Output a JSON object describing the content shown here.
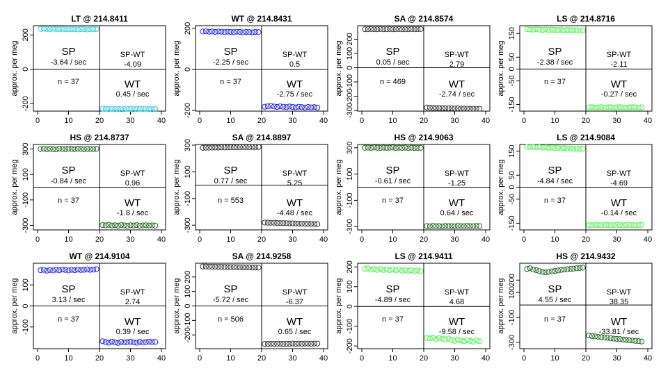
{
  "figure": {
    "ylabel": "approx. per meg",
    "xticks": [
      0,
      10,
      20,
      30,
      40
    ],
    "xlim": [
      0,
      40
    ]
  },
  "chart_data": [
    {
      "type": "scatter",
      "title": "LT @ 214.8411",
      "color": "#33ccdd",
      "ylim": [
        -240,
        250
      ],
      "yticks": [
        -200,
        0,
        200
      ],
      "sp_rate": "-3.64 / sec",
      "spwt": "-4.09",
      "wt_rate": "0.45 / sec",
      "n": "n = 37",
      "sp_values": [
        235,
        236,
        235,
        234,
        236,
        235,
        233,
        235,
        234,
        233,
        234,
        233,
        232,
        234,
        233,
        232,
        233,
        234,
        233
      ],
      "wt_values": [
        -230,
        -231,
        -232,
        -231,
        -232,
        -232,
        -233,
        -232,
        -231,
        -232,
        -233,
        -232,
        -231,
        -232,
        -231,
        -232,
        -233,
        -232
      ]
    },
    {
      "type": "scatter",
      "title": "WT @ 214.8431",
      "color": "#2222dd",
      "ylim": [
        -200,
        210
      ],
      "yticks": [
        -200,
        0,
        200
      ],
      "sp_rate": "-2.25 / sec",
      "spwt": "0.5",
      "wt_rate": "-2.75 / sec",
      "n": "n = 37",
      "sp_values": [
        185,
        186,
        184,
        185,
        183,
        185,
        184,
        182,
        184,
        183,
        182,
        184,
        183,
        181,
        183,
        182,
        181,
        183,
        182
      ],
      "wt_values": [
        -182,
        -180,
        -178,
        -181,
        -183,
        -180,
        -182,
        -184,
        -181,
        -183,
        -185,
        -182,
        -184,
        -186,
        -183,
        -185,
        -184,
        -186
      ]
    },
    {
      "type": "scatter",
      "title": "SA @ 214.8574",
      "color": "#333333",
      "ylim": [
        -300,
        290
      ],
      "yticks": [
        -300,
        -200,
        -100,
        0,
        100,
        200,
        300
      ],
      "sp_rate": "0.05 / sec",
      "spwt": "2.79",
      "wt_rate": "-2.74 / sec",
      "n": "n = 469",
      "sp_values": [
        270,
        270,
        271,
        270,
        270,
        271,
        270,
        270,
        271,
        270,
        270,
        271,
        270,
        270,
        270,
        271,
        270,
        270,
        271
      ],
      "wt_values": [
        -280,
        -281,
        -282,
        -283,
        -283,
        -284,
        -284,
        -285,
        -285,
        -286,
        -286,
        -287,
        -287,
        -287,
        -288,
        -288,
        -288,
        -288
      ]
    },
    {
      "type": "scatter",
      "title": "LS @ 214.8716",
      "color": "#55ee55",
      "ylim": [
        -175,
        180
      ],
      "yticks": [
        -150,
        -50,
        0,
        50,
        150
      ],
      "sp_rate": "-2.38 / sec",
      "spwt": "-2.11",
      "wt_rate": "-0.27 / sec",
      "n": "n = 37",
      "sp_values": [
        168,
        167,
        166,
        168,
        166,
        165,
        167,
        164,
        166,
        165,
        164,
        166,
        163,
        165,
        164,
        163,
        164,
        162,
        163
      ],
      "wt_values": [
        -162,
        -161,
        -163,
        -162,
        -161,
        -163,
        -162,
        -161,
        -163,
        -162,
        -161,
        -162,
        -163,
        -162,
        -161,
        -162,
        -163,
        -162
      ]
    },
    {
      "type": "scatter",
      "title": "HS @ 214.8737",
      "color": "#226622",
      "ylim": [
        -330,
        330
      ],
      "yticks": [
        -300,
        -100,
        100,
        300
      ],
      "sp_rate": "-0.84 / sec",
      "spwt": "0.96",
      "wt_rate": "-1.8 / sec",
      "n": "n = 37",
      "sp_values": [
        300,
        302,
        298,
        301,
        299,
        297,
        302,
        300,
        298,
        303,
        301,
        299,
        302,
        300,
        298,
        301,
        300,
        299,
        301
      ],
      "wt_values": [
        -298,
        -300,
        -296,
        -301,
        -299,
        -302,
        -298,
        -300,
        -303,
        -299,
        -301,
        -298,
        -302,
        -300,
        -299,
        -301,
        -300,
        -302
      ]
    },
    {
      "type": "scatter",
      "title": "SA @ 214.8897",
      "color": "#333333",
      "ylim": [
        -330,
        300
      ],
      "yticks": [
        -300,
        -100,
        100,
        300
      ],
      "sp_rate": "0.77 / sec",
      "spwt": "5.25",
      "wt_rate": "-4.48 / sec",
      "n": "n = 553",
      "sp_values": [
        280,
        281,
        281,
        282,
        282,
        282,
        283,
        283,
        283,
        284,
        284,
        284,
        285,
        285,
        285,
        285,
        286,
        286,
        286
      ],
      "wt_values": [
        -280,
        -281,
        -282,
        -282,
        -283,
        -284,
        -284,
        -285,
        -286,
        -286,
        -287,
        -288,
        -288,
        -289,
        -290,
        -290,
        -291,
        -292
      ]
    },
    {
      "type": "scatter",
      "title": "HS @ 214.9063",
      "color": "#226622",
      "ylim": [
        -320,
        320
      ],
      "yticks": [
        -300,
        -100,
        100,
        300
      ],
      "sp_rate": "-0.61 / sec",
      "spwt": "-1.25",
      "wt_rate": "0.64 / sec",
      "n": "n = 37",
      "sp_values": [
        300,
        301,
        299,
        302,
        300,
        298,
        301,
        299,
        300,
        302,
        298,
        300,
        299,
        301,
        297,
        300,
        299,
        298,
        300
      ],
      "wt_values": [
        -296,
        -298,
        -295,
        -297,
        -296,
        -298,
        -295,
        -297,
        -296,
        -298,
        -295,
        -296,
        -297,
        -295,
        -296,
        -297,
        -295,
        -296
      ]
    },
    {
      "type": "scatter",
      "title": "LS @ 214.9084",
      "color": "#55ee55",
      "ylim": [
        -175,
        175
      ],
      "yticks": [
        -150,
        -50,
        0,
        50,
        150
      ],
      "sp_rate": "-4.84 / sec",
      "spwt": "-4.69",
      "wt_rate": "-0.14 / sec",
      "n": "n = 37",
      "sp_values": [
        168,
        167,
        168,
        166,
        167,
        165,
        166,
        164,
        165,
        163,
        164,
        162,
        163,
        161,
        162,
        160,
        161,
        159,
        160
      ],
      "wt_values": [
        -158,
        -159,
        -157,
        -158,
        -159,
        -157,
        -158,
        -159,
        -158,
        -157,
        -158,
        -159,
        -158,
        -157,
        -158,
        -159,
        -158,
        -157
      ]
    },
    {
      "type": "scatter",
      "title": "WT @ 214.9104",
      "color": "#2222dd",
      "ylim": [
        -200,
        200
      ],
      "yticks": [
        -100,
        0,
        100
      ],
      "sp_rate": "3.13 / sec",
      "spwt": "2.74",
      "wt_rate": "0.39 / sec",
      "n": "n = 37",
      "sp_values": [
        170,
        172,
        168,
        171,
        169,
        172,
        170,
        173,
        171,
        169,
        172,
        170,
        173,
        171,
        172,
        174,
        172,
        173,
        175
      ],
      "wt_values": [
        -168,
        -172,
        -175,
        -170,
        -173,
        -176,
        -171,
        -174,
        -172,
        -170,
        -173,
        -175,
        -171,
        -174,
        -172,
        -170,
        -172,
        -171
      ]
    },
    {
      "type": "scatter",
      "title": "SA @ 214.9258",
      "color": "#333333",
      "ylim": [
        -290,
        290
      ],
      "yticks": [
        -200,
        -100,
        0,
        100,
        200
      ],
      "sp_rate": "-5.72 / sec",
      "spwt": "-6.37",
      "wt_rate": "0.65 / sec",
      "n": "n = 506",
      "sp_values": [
        272,
        272,
        271,
        271,
        271,
        270,
        270,
        269,
        269,
        268,
        268,
        268,
        267,
        267,
        266,
        266,
        265,
        265,
        265
      ],
      "wt_values": [
        -262,
        -262,
        -261,
        -262,
        -261,
        -261,
        -262,
        -261,
        -261,
        -260,
        -261,
        -260,
        -261,
        -260,
        -260,
        -261,
        -260,
        -260
      ]
    },
    {
      "type": "scatter",
      "title": "LS @ 214.9411",
      "color": "#55ee55",
      "ylim": [
        -210,
        215
      ],
      "yticks": [
        -200,
        -100,
        0,
        100,
        200
      ],
      "sp_rate": "-4.89 / sec",
      "spwt": "4.68",
      "wt_rate": "-9.58 / sec",
      "n": "n = 37",
      "sp_values": [
        190,
        192,
        186,
        189,
        185,
        190,
        184,
        188,
        183,
        187,
        182,
        186,
        181,
        184,
        180,
        183,
        179,
        182,
        178
      ],
      "wt_values": [
        -160,
        -162,
        -158,
        -165,
        -160,
        -163,
        -167,
        -162,
        -170,
        -174,
        -168,
        -172,
        -176,
        -170,
        -174,
        -178,
        -172,
        -176
      ]
    },
    {
      "type": "scatter",
      "title": "HS @ 214.9432",
      "color": "#226622",
      "ylim": [
        -345,
        330
      ],
      "yticks": [
        -300,
        -100,
        100,
        200
      ],
      "sp_rate": "4.55 / sec",
      "spwt": "38.35",
      "wt_rate": "-33.81 / sec",
      "n": "n = 37",
      "sp_values": [
        290,
        295,
        285,
        280,
        272,
        266,
        262,
        266,
        270,
        274,
        278,
        282,
        285,
        287,
        290,
        292,
        295,
        297,
        300
      ],
      "wt_values": [
        -245,
        -250,
        -252,
        -256,
        -258,
        -260,
        -264,
        -266,
        -270,
        -272,
        -274,
        -278,
        -280,
        -283,
        -285,
        -288,
        -290,
        -293
      ]
    }
  ]
}
